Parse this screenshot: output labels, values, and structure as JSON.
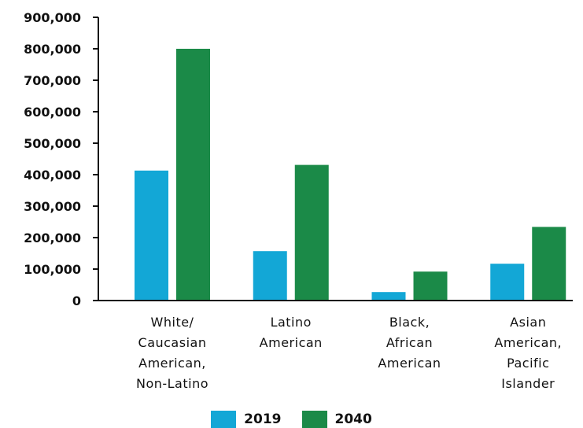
{
  "chart_data": {
    "type": "bar",
    "categories": [
      [
        "White/",
        "Caucasian",
        "American,",
        "Non-Latino"
      ],
      [
        "Latino",
        "American"
      ],
      [
        "Black,",
        "African",
        "American"
      ],
      [
        "Asian",
        "American,",
        "Pacific",
        "Islander"
      ]
    ],
    "series": [
      {
        "name": "2019",
        "color": "#13a7d6",
        "values": [
          413000,
          157000,
          27000,
          117000
        ]
      },
      {
        "name": "2040",
        "color": "#1b8a48",
        "values": [
          800000,
          431000,
          92000,
          234000
        ]
      }
    ],
    "ylim": [
      0,
      900000
    ],
    "yticks": [
      "0",
      "100,000",
      "200,000",
      "300,000",
      "400,000",
      "500,000",
      "600,000",
      "700,000",
      "800,000",
      "900,000"
    ],
    "xlabel": "",
    "ylabel": "",
    "title": "",
    "grid": false,
    "legend": "bottom-center"
  }
}
